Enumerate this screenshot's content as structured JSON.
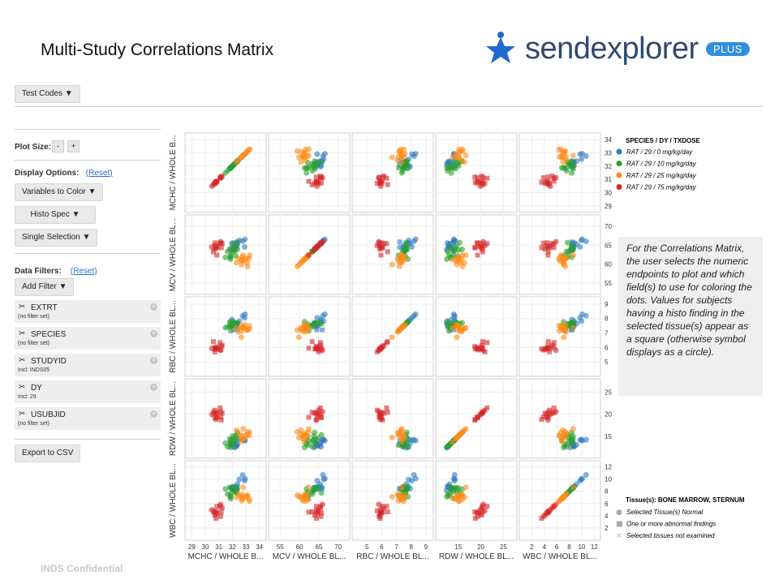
{
  "title": "Multi-Study Correlations Matrix",
  "logo": {
    "text": "sendexplorer",
    "badge": "PLUS",
    "color": "#2f4a6e",
    "star_color": "#1f6bd1"
  },
  "toolbar": {
    "test_codes": "Test Codes ▼"
  },
  "sidebar": {
    "plot_size_label": "Plot Size:",
    "minus": "-",
    "plus": "+",
    "display_options_label": "Display Options:",
    "reset": "(Reset)",
    "variables_to_color": "Variables to Color ▼",
    "histo_spec": "Histo Spec ▼",
    "single_selection": "Single Selection ▼",
    "data_filters_label": "Data Filters:",
    "add_filter": "Add Filter ▼",
    "filters": [
      {
        "name": "EXTRT",
        "sub": "(no filter set)"
      },
      {
        "name": "SPECIES",
        "sub": "(no filter set)"
      },
      {
        "name": "STUDYID",
        "sub": "Incl: INDS05"
      },
      {
        "name": "DY",
        "sub": "Incl: 29"
      },
      {
        "name": "USUBJID",
        "sub": "(no filter set)"
      }
    ],
    "export": "Export to CSV"
  },
  "note": "For the Correlations Matrix, the user selects the numeric endpoints to plot and which field(s) to use for coloring the dots. Values for subjects having a histo finding in the selected tissue(s) appear as a square (otherwise symbol displays as a circle).",
  "footer": "INDS Confidential",
  "chart_data": {
    "type": "scatter",
    "variables": [
      {
        "label": "MCHC / WHOLE B...",
        "ylabel": "MCHC / WHOLE B...",
        "ticks": [
          29,
          30,
          31,
          32,
          33,
          34
        ],
        "range": [
          28.5,
          34.5
        ],
        "right_ticks": [
          34,
          33,
          32,
          31,
          30,
          29
        ]
      },
      {
        "label": "MCV / WHOLE BL...",
        "ylabel": "MCV / WHOLE BL...",
        "ticks": [
          55,
          60,
          65,
          70
        ],
        "range": [
          52,
          73
        ],
        "right_ticks": [
          70,
          65,
          60,
          55
        ]
      },
      {
        "label": "RBC / WHOLE BL...",
        "ylabel": "RBC / WHOLE BL...",
        "ticks": [
          5,
          6,
          7,
          8,
          9
        ],
        "range": [
          4,
          9.5
        ],
        "right_ticks": [
          9,
          8,
          7,
          6,
          5
        ]
      },
      {
        "label": "RDW / WHOLE BL...",
        "ylabel": "RDW / WHOLE BL...",
        "ticks": [
          15,
          20,
          25
        ],
        "range": [
          10,
          28
        ],
        "right_ticks": [
          25,
          20,
          15
        ]
      },
      {
        "label": "WBC / WHOLE BL...",
        "ylabel": "WBC / WHOLE BL...",
        "ticks": [
          2,
          4,
          6,
          8,
          10,
          12
        ],
        "range": [
          0,
          13
        ],
        "right_ticks": [
          12,
          10,
          8,
          6,
          4,
          2
        ]
      }
    ],
    "legend": {
      "title": "SPECIES / DY / TXDOSE",
      "groups": [
        {
          "label": "RAT / 29 / 0 mg/kg/day",
          "color": "#2e7bbf"
        },
        {
          "label": "RAT / 29 / 10 mg/kg/day",
          "color": "#2ca02c"
        },
        {
          "label": "RAT / 29 / 25 mg/kg/day",
          "color": "#ff8c1a"
        },
        {
          "label": "RAT / 29 / 75 mg/kg/day",
          "color": "#d62728"
        }
      ]
    },
    "shape_legend": {
      "title": "Tissue(s): BONE MARROW, STERNUM",
      "items": [
        {
          "label": "Selected Tissue(s) Normal",
          "symbol": "●"
        },
        {
          "label": "One or more abnormal findings",
          "symbol": "■"
        },
        {
          "label": "Selected tissues not examined",
          "symbol": "×"
        }
      ]
    },
    "group_means": [
      [
        32.5,
        65,
        7.8,
        13.5,
        9
      ],
      [
        32,
        63,
        7.6,
        14,
        8
      ],
      [
        32.8,
        61,
        7.3,
        15,
        7
      ],
      [
        31,
        65,
        6,
        20,
        5
      ]
    ]
  }
}
